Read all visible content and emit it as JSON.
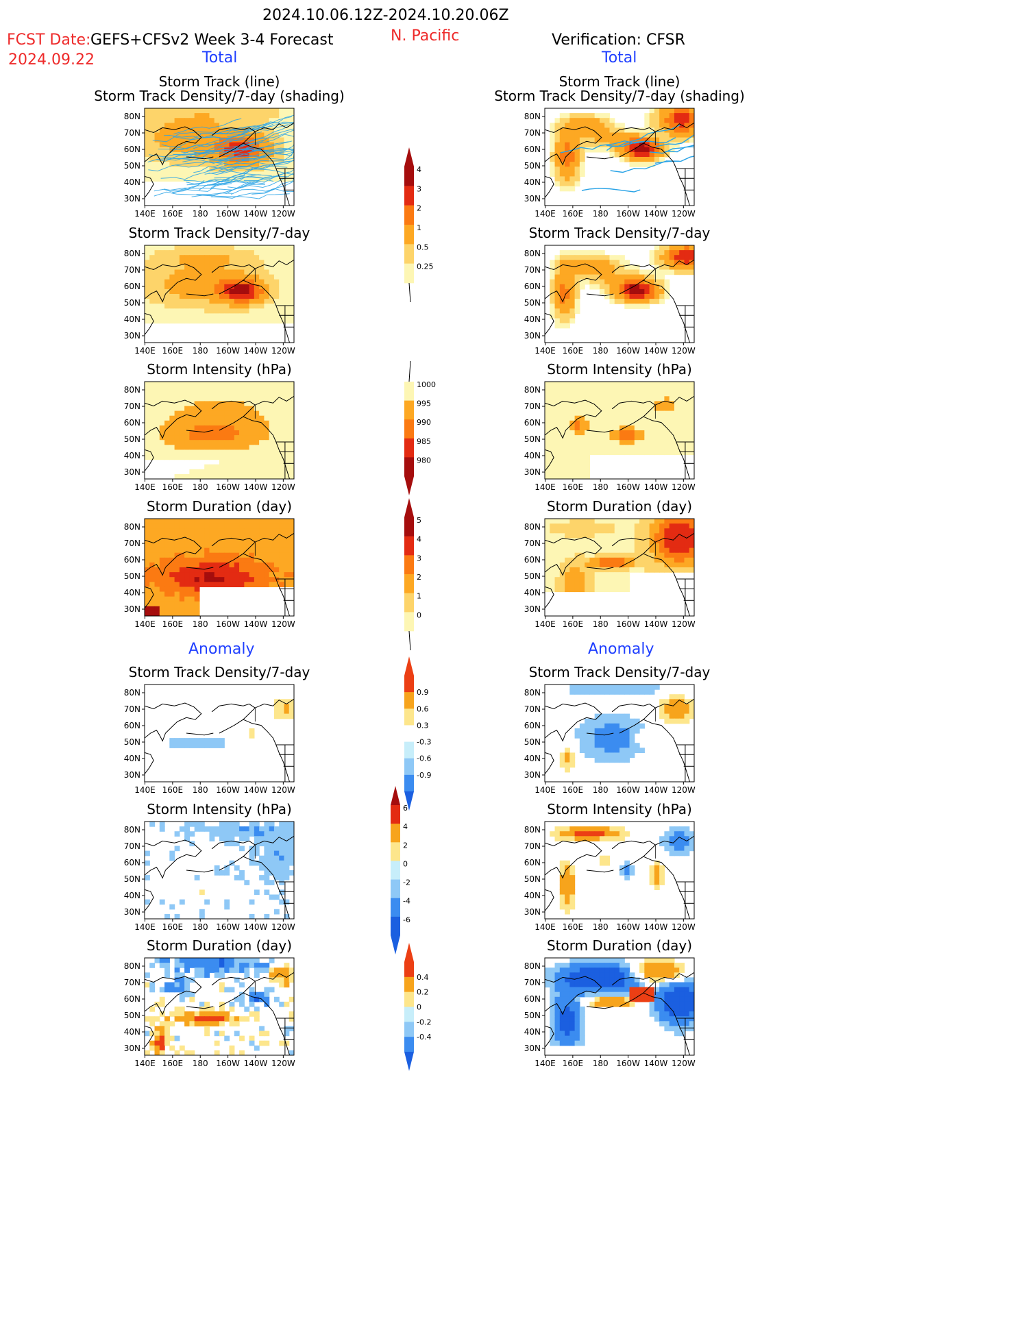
{
  "header": {
    "date_range": "2024.10.06.12Z-2024.10.20.06Z",
    "fcst_label": "FCST Date:",
    "fcst_model": "GEFS+CFSv2 Week 3-4 Forecast",
    "fcst_date": "2024.09.22",
    "region": "N. Pacific",
    "verification": "Verification: CFSR",
    "left_total": "Total",
    "right_total": "Total",
    "left_anomaly": "Anomaly",
    "right_anomaly": "Anomaly"
  },
  "axes": {
    "x_ticks": [
      "140E",
      "160E",
      "180",
      "160W",
      "140W",
      "120W"
    ],
    "y_ticks": [
      "80N",
      "70N",
      "60N",
      "50N",
      "40N",
      "30N"
    ]
  },
  "panel_titles": {
    "track_line": "Storm Track (line)",
    "track_shading": "Storm Track Density/7-day (shading)",
    "density": "Storm Track Density/7-day",
    "intensity": "Storm Intensity (hPa)",
    "duration": "Storm Duration (day)"
  },
  "colors": {
    "seq": [
      "#fdf6b4",
      "#fdd46a",
      "#fda823",
      "#fb7a12",
      "#e32b12",
      "#a50d0d"
    ],
    "div": [
      "#1b5fe0",
      "#3b8cf0",
      "#8ec8f6",
      "#c7eefa",
      "#ffffff",
      "#fde68c",
      "#f7a41c",
      "#ec3f14"
    ],
    "track_line": "#2aa3e6",
    "accent_red": "#ee2a2a",
    "accent_blue": "#1f3fff"
  },
  "colorbars": [
    {
      "name": "density-total",
      "labels": [
        "4",
        "3",
        "2",
        "1",
        "0.5",
        "0.25"
      ]
    },
    {
      "name": "intensity-total",
      "labels": [
        "1000",
        "995",
        "990",
        "985",
        "980"
      ]
    },
    {
      "name": "duration-total",
      "labels": [
        "5",
        "4",
        "3",
        "2",
        "1",
        "0"
      ]
    },
    {
      "name": "density-anom",
      "labels": [
        "0.9",
        "0.6",
        "0.3",
        "-0.3",
        "-0.6",
        "-0.9"
      ]
    },
    {
      "name": "intensity-anom",
      "labels": [
        "6",
        "4",
        "2",
        "0",
        "-2",
        "-4",
        "-6"
      ]
    },
    {
      "name": "duration-anom",
      "labels": [
        "0.4",
        "0.2",
        "0",
        "-0.2",
        "-0.4"
      ]
    }
  ],
  "chart_data": [
    {
      "type": "heatmap",
      "panel": "forecast-total-storm-track",
      "x_ticks": [
        "140E",
        "160E",
        "180",
        "160W",
        "140W",
        "120W"
      ],
      "y_ticks": [
        "80N",
        "70N",
        "60N",
        "50N",
        "40N",
        "30N"
      ],
      "values_desc": "density shading with storm track lines"
    },
    {
      "type": "heatmap",
      "panel": "verification-total-storm-track",
      "x_ticks": [
        "140E",
        "160E",
        "180",
        "160W",
        "140W",
        "120W"
      ],
      "y_ticks": [
        "80N",
        "70N",
        "60N",
        "50N",
        "40N",
        "30N"
      ]
    },
    {
      "type": "heatmap",
      "panel": "forecast-total-density"
    },
    {
      "type": "heatmap",
      "panel": "verification-total-density"
    },
    {
      "type": "heatmap",
      "panel": "forecast-total-intensity"
    },
    {
      "type": "heatmap",
      "panel": "verification-total-intensity"
    },
    {
      "type": "heatmap",
      "panel": "forecast-total-duration"
    },
    {
      "type": "heatmap",
      "panel": "verification-total-duration"
    },
    {
      "type": "heatmap",
      "panel": "forecast-anomaly-density"
    },
    {
      "type": "heatmap",
      "panel": "verification-anomaly-density"
    },
    {
      "type": "heatmap",
      "panel": "forecast-anomaly-intensity"
    },
    {
      "type": "heatmap",
      "panel": "verification-anomaly-intensity"
    },
    {
      "type": "heatmap",
      "panel": "forecast-anomaly-duration"
    },
    {
      "type": "heatmap",
      "panel": "verification-anomaly-duration"
    }
  ]
}
